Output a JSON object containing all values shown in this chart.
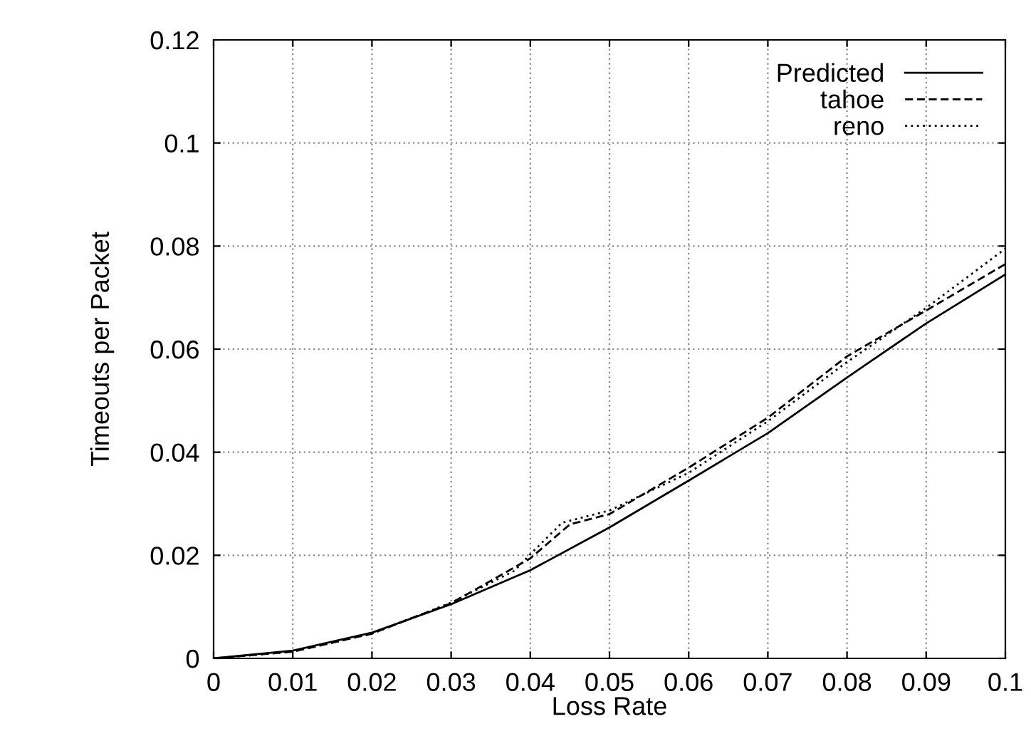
{
  "chart_data": {
    "type": "line",
    "xlabel": "Loss Rate",
    "ylabel": "Timeouts per Packet",
    "xlim": [
      0,
      0.1
    ],
    "ylim": [
      0,
      0.12
    ],
    "xticks": [
      0,
      0.01,
      0.02,
      0.03,
      0.04,
      0.05,
      0.06,
      0.07,
      0.08,
      0.09,
      0.1
    ],
    "yticks": [
      0,
      0.02,
      0.04,
      0.06,
      0.08,
      0.1,
      0.12
    ],
    "grid": true,
    "legend": "top right",
    "series": [
      {
        "name": "Predicted",
        "color": "#000000",
        "line_style": "solid",
        "x": [
          0,
          0.01,
          0.02,
          0.03,
          0.04,
          0.05,
          0.06,
          0.07,
          0.08,
          0.09,
          0.1
        ],
        "values": [
          0,
          0.0015,
          0.005,
          0.0105,
          0.0171,
          0.0254,
          0.0345,
          0.0437,
          0.0545,
          0.065,
          0.0745
        ]
      },
      {
        "name": "tahoe",
        "color": "#000000",
        "line_style": "dashed",
        "x": [
          0,
          0.01,
          0.02,
          0.025,
          0.03,
          0.04,
          0.045,
          0.05,
          0.06,
          0.07,
          0.08,
          0.09,
          0.1
        ],
        "values": [
          0,
          0.0013,
          0.0048,
          0.0078,
          0.0107,
          0.0194,
          0.026,
          0.028,
          0.037,
          0.0467,
          0.0586,
          0.0675,
          0.0765
        ]
      },
      {
        "name": "reno",
        "color": "#000000",
        "line_style": "dotted",
        "x": [
          0,
          0.01,
          0.02,
          0.03,
          0.038,
          0.04,
          0.044,
          0.05,
          0.06,
          0.07,
          0.08,
          0.09,
          0.1
        ],
        "values": [
          0,
          0.0013,
          0.0048,
          0.0108,
          0.017,
          0.0202,
          0.0263,
          0.0287,
          0.036,
          0.046,
          0.0575,
          0.068,
          0.0795
        ]
      }
    ]
  }
}
